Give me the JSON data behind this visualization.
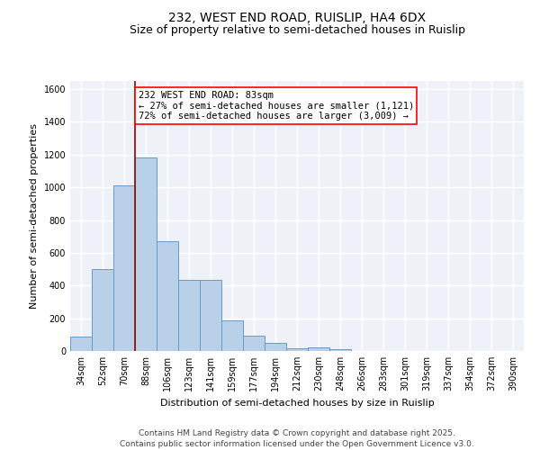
{
  "title_line1": "232, WEST END ROAD, RUISLIP, HA4 6DX",
  "title_line2": "Size of property relative to semi-detached houses in Ruislip",
  "xlabel": "Distribution of semi-detached houses by size in Ruislip",
  "ylabel": "Number of semi-detached properties",
  "categories": [
    "34sqm",
    "52sqm",
    "70sqm",
    "88sqm",
    "106sqm",
    "123sqm",
    "141sqm",
    "159sqm",
    "177sqm",
    "194sqm",
    "212sqm",
    "230sqm",
    "248sqm",
    "266sqm",
    "283sqm",
    "301sqm",
    "319sqm",
    "337sqm",
    "354sqm",
    "372sqm",
    "390sqm"
  ],
  "values": [
    90,
    500,
    1010,
    1185,
    670,
    435,
    435,
    185,
    95,
    52,
    18,
    20,
    10,
    0,
    0,
    0,
    0,
    0,
    0,
    0,
    0
  ],
  "bar_color": "#b8d0e8",
  "bar_edge_color": "#6699cc",
  "red_line_x": 2.5,
  "annotation_text": "232 WEST END ROAD: 83sqm\n← 27% of semi-detached houses are smaller (1,121)\n72% of semi-detached houses are larger (3,009) →",
  "annotation_box_color": "white",
  "annotation_box_edge_color": "red",
  "ylim": [
    0,
    1650
  ],
  "yticks": [
    0,
    200,
    400,
    600,
    800,
    1000,
    1200,
    1400,
    1600
  ],
  "footer_line1": "Contains HM Land Registry data © Crown copyright and database right 2025.",
  "footer_line2": "Contains public sector information licensed under the Open Government Licence v3.0.",
  "bg_color": "#eef2f8",
  "grid_color": "white",
  "title_fontsize": 10,
  "subtitle_fontsize": 9,
  "axis_fontsize": 8,
  "tick_fontsize": 7,
  "annotation_fontsize": 7.5,
  "footer_fontsize": 6.5
}
